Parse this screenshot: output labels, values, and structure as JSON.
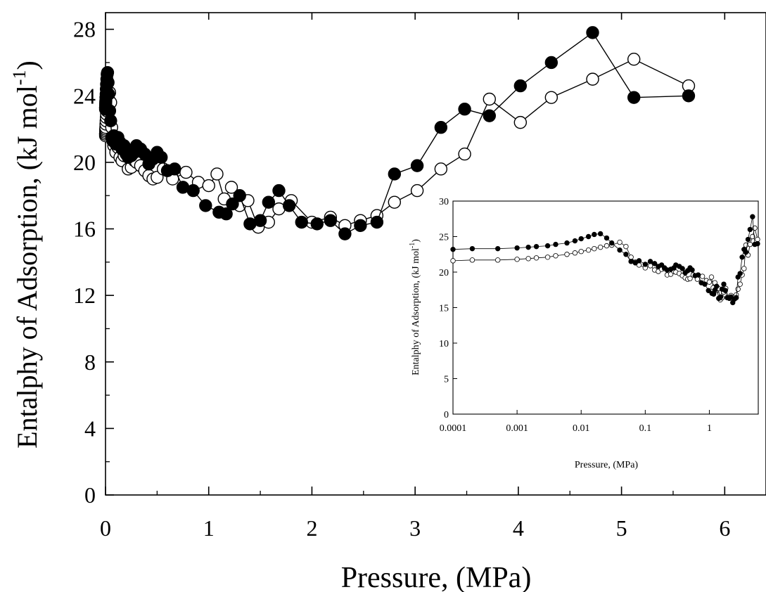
{
  "chart_data": [
    {
      "id": "main",
      "type": "scatter",
      "title": "",
      "xlabel": "Pressure, (MPa)",
      "ylabel": "Entalphy of Adsorption, (kJ mol",
      "ylabel_sup": "-1",
      "ylabel_close": ")",
      "xlim": [
        0,
        6.4
      ],
      "ylim": [
        0,
        29
      ],
      "x_ticks": [
        0,
        1,
        2,
        3,
        4,
        5,
        6
      ],
      "x_tick_labels": [
        "0",
        "1",
        "2",
        "3",
        "4",
        "5",
        "6"
      ],
      "y_ticks": [
        0,
        4,
        8,
        12,
        16,
        20,
        24,
        28
      ],
      "y_tick_labels": [
        "0",
        "4",
        "8",
        "12",
        "16",
        "20",
        "24",
        "28"
      ],
      "series": [
        {
          "marker": "filled-circle",
          "color": "#000000",
          "x": [
            0.0001,
            0.0002,
            0.0005,
            0.001,
            0.0015,
            0.002,
            0.003,
            0.004,
            0.006,
            0.008,
            0.01,
            0.013,
            0.016,
            0.02,
            0.025,
            0.03,
            0.04,
            0.05,
            0.06,
            0.07,
            0.08,
            0.1,
            0.12,
            0.14,
            0.16,
            0.18,
            0.2,
            0.22,
            0.25,
            0.28,
            0.3,
            0.34,
            0.38,
            0.42,
            0.46,
            0.5,
            0.54,
            0.6,
            0.67,
            0.75,
            0.85,
            0.97,
            1.1,
            1.17,
            1.23,
            1.3,
            1.4,
            1.5,
            1.58,
            1.68,
            1.78,
            1.9,
            2.05,
            2.18,
            2.32,
            2.47,
            2.63,
            2.8,
            3.02,
            3.25,
            3.48,
            3.72,
            4.02,
            4.32,
            4.72,
            5.12,
            5.65
          ],
          "y": [
            23.2,
            23.3,
            23.3,
            23.4,
            23.5,
            23.6,
            23.7,
            23.9,
            24.1,
            24.4,
            24.7,
            25.0,
            25.3,
            25.4,
            24.8,
            24.1,
            23.1,
            22.5,
            21.5,
            21.3,
            21.6,
            21.1,
            21.5,
            21.2,
            20.8,
            21.0,
            20.6,
            20.3,
            20.4,
            20.6,
            21.0,
            20.8,
            20.5,
            19.9,
            20.2,
            20.6,
            20.3,
            19.5,
            19.6,
            18.5,
            18.3,
            17.4,
            17.0,
            16.9,
            17.5,
            18.0,
            16.3,
            16.5,
            17.6,
            18.3,
            17.4,
            16.4,
            16.3,
            16.5,
            15.7,
            16.2,
            16.4,
            19.3,
            19.8,
            22.1,
            23.2,
            22.8,
            24.6,
            26.0,
            27.8,
            23.9,
            24.0
          ]
        },
        {
          "marker": "open-circle",
          "color": "#000000",
          "x": [
            0.0001,
            0.0002,
            0.0005,
            0.001,
            0.0015,
            0.002,
            0.003,
            0.004,
            0.006,
            0.008,
            0.01,
            0.013,
            0.016,
            0.02,
            0.025,
            0.03,
            0.04,
            0.05,
            0.06,
            0.07,
            0.08,
            0.1,
            0.12,
            0.14,
            0.16,
            0.18,
            0.2,
            0.22,
            0.25,
            0.28,
            0.3,
            0.34,
            0.38,
            0.42,
            0.46,
            0.5,
            0.56,
            0.65,
            0.78,
            0.9,
            1.0,
            1.08,
            1.15,
            1.22,
            1.3,
            1.38,
            1.48,
            1.58,
            1.68,
            1.8,
            2.0,
            2.18,
            2.32,
            2.47,
            2.63,
            2.8,
            3.02,
            3.25,
            3.48,
            3.72,
            4.02,
            4.32,
            4.72,
            5.12,
            5.65
          ],
          "y": [
            21.6,
            21.7,
            21.7,
            21.8,
            21.9,
            22.0,
            22.1,
            22.3,
            22.5,
            22.7,
            22.9,
            23.1,
            23.3,
            23.5,
            23.7,
            23.8,
            24.2,
            23.6,
            22.1,
            21.4,
            21.0,
            20.6,
            20.9,
            20.3,
            20.1,
            20.4,
            20.5,
            19.6,
            19.7,
            20.1,
            20.0,
            19.8,
            19.5,
            19.2,
            19.0,
            19.1,
            19.6,
            19.0,
            19.4,
            18.8,
            18.6,
            19.3,
            17.8,
            18.5,
            17.4,
            17.7,
            16.1,
            16.4,
            17.2,
            17.7,
            16.4,
            16.7,
            16.2,
            16.5,
            16.8,
            17.6,
            18.3,
            19.6,
            20.5,
            23.8,
            22.4,
            23.9,
            25.0,
            26.2,
            24.6
          ]
        }
      ]
    },
    {
      "id": "inset",
      "type": "scatter",
      "title": "",
      "xlabel": "Pressure, (MPa)",
      "ylabel": "Entalphy of Adsorption, (kJ mol",
      "ylabel_sup": "-1",
      "ylabel_close": ")",
      "x_scale": "log",
      "xlim": [
        0.0001,
        5.8
      ],
      "ylim": [
        0,
        30
      ],
      "x_ticks": [
        0.0001,
        0.001,
        0.01,
        0.1,
        1
      ],
      "x_tick_labels": [
        "0.0001",
        "0.001",
        "0.01",
        "0.1",
        "1"
      ],
      "y_ticks": [
        0,
        5,
        10,
        15,
        20,
        25,
        30
      ],
      "y_tick_labels": [
        "0",
        "5",
        "10",
        "15",
        "20",
        "25",
        "30"
      ],
      "series_ref": "same data as main chart"
    }
  ]
}
